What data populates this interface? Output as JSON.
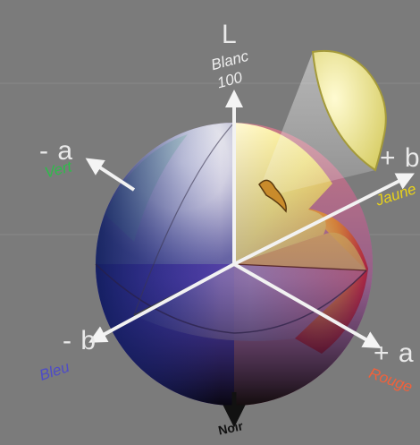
{
  "axes": {
    "l": {
      "symbol": "L",
      "name": "Blanc",
      "value": "100",
      "color": "#eeeeee"
    },
    "a_neg": {
      "symbol": "- a",
      "name": "Vert",
      "color": "#2dbd4a"
    },
    "b_pos": {
      "symbol": "+ b",
      "name": "Jaune",
      "color": "#e8d21a"
    },
    "b_neg": {
      "symbol": "- b",
      "name": "Bleu",
      "color": "#4e4cc7"
    },
    "a_pos": {
      "symbol": "+ a",
      "name": "Rouge",
      "color": "#f1613b"
    },
    "bottom": {
      "name": "Noir",
      "color": "#111111"
    }
  },
  "colors": {
    "background": "#7b7b7b",
    "sphere_highlight": "#ffffff",
    "wedge_yellow": "#efe89a",
    "axis_line": "#f2f2f2"
  }
}
